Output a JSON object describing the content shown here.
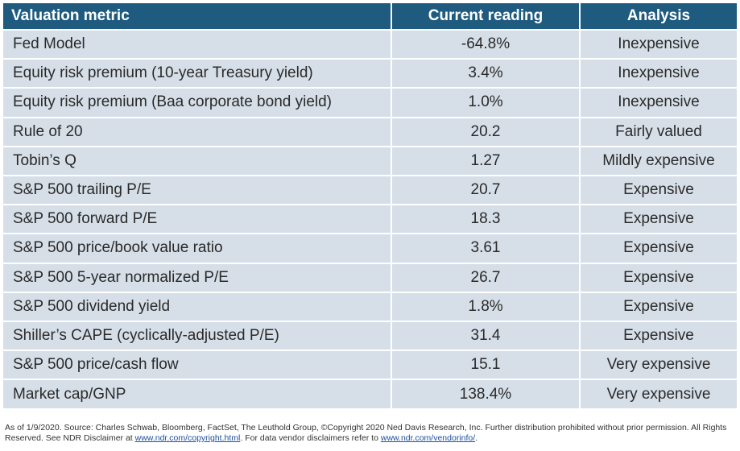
{
  "table": {
    "headers": [
      "Valuation metric",
      "Current reading",
      "Analysis"
    ],
    "rows": [
      [
        "Fed Model",
        "-64.8%",
        "Inexpensive"
      ],
      [
        "Equity risk premium (10-year Treasury yield)",
        "3.4%",
        "Inexpensive"
      ],
      [
        "Equity risk premium (Baa corporate bond yield)",
        "1.0%",
        "Inexpensive"
      ],
      [
        "Rule of 20",
        "20.2",
        "Fairly valued"
      ],
      [
        "Tobin’s Q",
        "1.27",
        "Mildly expensive"
      ],
      [
        "S&P 500 trailing P/E",
        "20.7",
        "Expensive"
      ],
      [
        "S&P 500 forward P/E",
        "18.3",
        "Expensive"
      ],
      [
        "S&P 500 price/book value ratio",
        "3.61",
        "Expensive"
      ],
      [
        "S&P 500 5-year normalized P/E",
        "26.7",
        "Expensive"
      ],
      [
        "S&P 500 dividend yield",
        "1.8%",
        "Expensive"
      ],
      [
        "Shiller’s CAPE (cyclically-adjusted P/E)",
        "31.4",
        "Expensive"
      ],
      [
        "S&P 500 price/cash flow",
        "15.1",
        "Very expensive"
      ],
      [
        "Market cap/GNP",
        "138.4%",
        "Very expensive"
      ]
    ]
  },
  "footer": {
    "text1": "As of 1/9/2020.  Source: Charles Schwab, Bloomberg, FactSet, The Leuthold Group, ©Copyright 2020 Ned Davis Research, Inc. Further distribution prohibited without prior permission. All Rights Reserved. See NDR Disclaimer at ",
    "link1": "www.ndr.com/copyright.html",
    "text2": ".  For data vendor disclaimers refer to ",
    "link2": "www.ndr.com/vendorinfo/",
    "text3": "."
  },
  "colors": {
    "header_bg": "#1f5b7f",
    "row_bg": "#d6dfe8",
    "link": "#1a4fa0"
  }
}
